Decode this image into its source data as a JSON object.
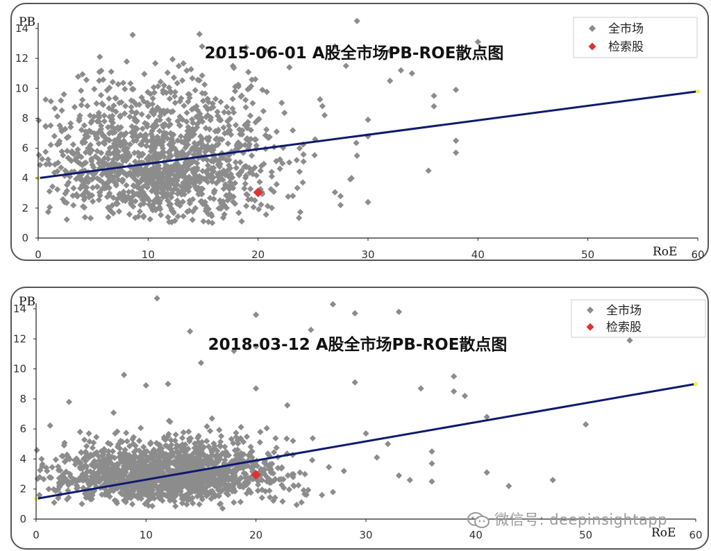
{
  "chart_data": [
    {
      "type": "scatter",
      "title": "2015-06-01 A股全市场PB-ROE散点图",
      "xlabel": "RoE",
      "ylabel": "PB",
      "xlim": [
        0,
        60
      ],
      "ylim": [
        0,
        14
      ],
      "xticks": [
        0,
        10,
        20,
        30,
        40,
        50,
        60
      ],
      "yticks": [
        0,
        2,
        4,
        6,
        8,
        10,
        12,
        14
      ],
      "grid": false,
      "legend_position": "top-right",
      "legend": [
        "全市场",
        "检索股"
      ],
      "series": [
        {
          "name": "全市场",
          "color": "#8c8c8c",
          "marker": "diamond",
          "cloud": {
            "count": 1400,
            "x_mean": 11,
            "x_sd": 5.5,
            "y_mean": 4.8,
            "y_sd": 2.9,
            "x_min": 0,
            "x_max": 30,
            "y_min": 1,
            "y_max": 14.8,
            "seed": 11
          },
          "points": [
            [
              58.5,
              13.2
            ],
            [
              40,
              13.1
            ],
            [
              38,
              9.9
            ],
            [
              38,
              6.5
            ],
            [
              38,
              5.7
            ],
            [
              35.5,
              4.5
            ],
            [
              30,
              2.4
            ],
            [
              30,
              6.8
            ],
            [
              30,
              7.9
            ],
            [
              32,
              12.5
            ],
            [
              32,
              10.5
            ],
            [
              33,
              11.2
            ],
            [
              34,
              11.0
            ],
            [
              36,
              8.8
            ],
            [
              36,
              9.5
            ],
            [
              28,
              11.5
            ],
            [
              27,
              12.8
            ],
            [
              29,
              14.5
            ],
            [
              27.5,
              2.8
            ],
            [
              27.5,
              2.2
            ],
            [
              29,
              5.5
            ],
            [
              28.5,
              4.0
            ]
          ]
        },
        {
          "name": "检索股",
          "color": "#e03131",
          "marker": "diamond",
          "points": [
            [
              20,
              3.05
            ]
          ]
        }
      ],
      "trendline": {
        "color": "#0d1a6e",
        "x": [
          0,
          60
        ],
        "y": [
          4.0,
          9.8
        ]
      }
    },
    {
      "type": "scatter",
      "title": "2018-03-12  A股全市场PB-ROE散点图",
      "xlabel": "RoE",
      "ylabel": "PB",
      "xlim": [
        0,
        60
      ],
      "ylim": [
        0,
        14
      ],
      "xticks": [
        0,
        10,
        20,
        30,
        40,
        50,
        60
      ],
      "yticks": [
        0,
        2,
        4,
        6,
        8,
        10,
        12,
        14
      ],
      "grid": false,
      "legend_position": "top-right",
      "legend": [
        "全市场",
        "检索股"
      ],
      "series": [
        {
          "name": "全市场",
          "color": "#8c8c8c",
          "marker": "diamond",
          "cloud": {
            "count": 1600,
            "x_mean": 12,
            "x_sd": 5.0,
            "y_mean": 2.8,
            "y_sd": 1.3,
            "x_min": 0,
            "x_max": 28,
            "y_min": 0.7,
            "y_max": 10,
            "seed": 29
          },
          "points": [
            [
              11,
              14.7
            ],
            [
              27,
              14.3
            ],
            [
              29,
              13.7
            ],
            [
              33,
              13.8
            ],
            [
              20,
              13.6
            ],
            [
              14,
              12.5
            ],
            [
              25,
              12.6
            ],
            [
              20,
              11.5
            ],
            [
              18,
              11.2
            ],
            [
              38,
              9.5
            ],
            [
              38,
              8.5
            ],
            [
              35,
              8.7
            ],
            [
              29,
              9.1
            ],
            [
              39,
              8.2
            ],
            [
              36,
              4.5
            ],
            [
              36,
              3.7
            ],
            [
              41,
              3.1
            ],
            [
              43,
              2.2
            ],
            [
              47,
              2.6
            ],
            [
              50,
              6.3
            ],
            [
              41,
              6.8
            ],
            [
              36,
              2.5
            ],
            [
              33,
              2.9
            ],
            [
              30,
              5.7
            ],
            [
              31,
              4.1
            ],
            [
              34,
              2.6
            ],
            [
              54,
              11.9
            ],
            [
              32,
              5.0
            ],
            [
              28,
              3.2
            ],
            [
              22,
              3.4
            ],
            [
              21,
              2.5
            ],
            [
              24,
              3.1
            ],
            [
              26,
              1.6
            ],
            [
              27,
              1.8
            ],
            [
              4,
              5.8
            ],
            [
              3,
              7.8
            ],
            [
              5,
              4.2
            ],
            [
              1,
              3.2
            ],
            [
              0.3,
              1.6
            ],
            [
              0.5,
              4.0
            ],
            [
              10,
              8.9
            ],
            [
              8,
              9.6
            ],
            [
              12,
              9.0
            ],
            [
              15,
              10.4
            ],
            [
              20,
              8.7
            ],
            [
              16,
              6.7
            ]
          ]
        },
        {
          "name": "检索股",
          "color": "#e03131",
          "marker": "diamond",
          "points": [
            [
              20,
              2.95
            ]
          ]
        }
      ],
      "trendline": {
        "color": "#0d1a6e",
        "x": [
          0,
          60
        ],
        "y": [
          1.35,
          9.0
        ]
      }
    }
  ],
  "watermark": "微信号: deepinsightapp"
}
